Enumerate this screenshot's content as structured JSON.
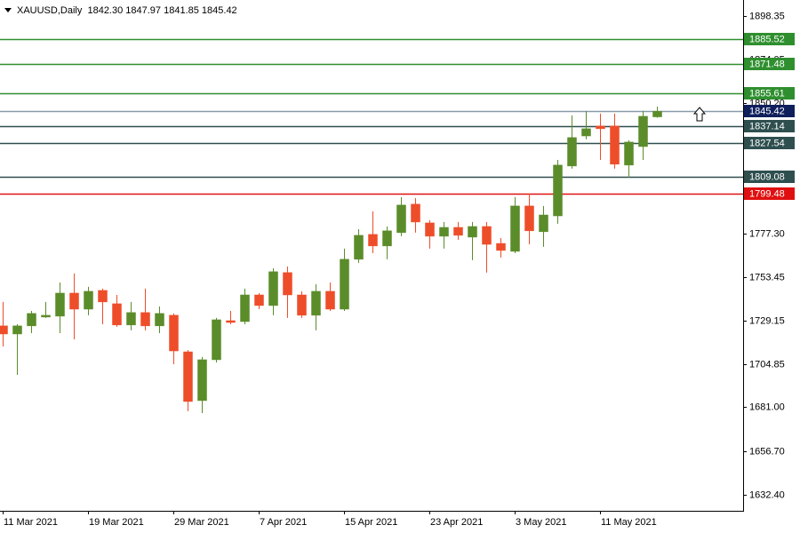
{
  "chart_data": {
    "type": "candlestick",
    "title": "XAUUSD,Daily  1842.30 1847.97 1841.85 1845.42",
    "categories": [
      "11 Mar 2021",
      null,
      null,
      null,
      null,
      null,
      "19 Mar 2021",
      null,
      null,
      null,
      null,
      null,
      "29 Mar 2021",
      null,
      null,
      null,
      null,
      null,
      "7 Apr 2021",
      null,
      null,
      null,
      null,
      null,
      "15 Apr 2021",
      null,
      null,
      null,
      null,
      null,
      "23 Apr 2021",
      null,
      null,
      null,
      null,
      null,
      "3 May 2021",
      null,
      null,
      null,
      null,
      null,
      "11 May 2021",
      null,
      null,
      null,
      null
    ],
    "open": [
      1726.2,
      1721.7,
      1726.2,
      1731.1,
      1731.6,
      1744.4,
      1735.5,
      1745.9,
      1738.5,
      1726.7,
      1733.6,
      1726.2,
      1732.1,
      1711.8,
      1684.7,
      1707.4,
      1729.1,
      1728.6,
      1743.4,
      1737.5,
      1755.8,
      1743.4,
      1732.1,
      1745.4,
      1735.5,
      1763.2,
      1777.0,
      1770.6,
      1778.0,
      1793.8,
      1783.4,
      1776.0,
      1780.9,
      1775.5,
      1781.4,
      1772.0,
      1767.6,
      1792.8,
      1778.5,
      1787.3,
      1815.0,
      1831.7,
      1837.2,
      1837.2,
      1815.5,
      1825.8,
      1842.3
    ],
    "high": [
      1739.5,
      1727.1,
      1734.5,
      1739.5,
      1750.3,
      1755.3,
      1747.9,
      1746.9,
      1743.4,
      1739.5,
      1746.9,
      1737.0,
      1733.1,
      1712.8,
      1708.9,
      1730.6,
      1734.5,
      1746.9,
      1744.4,
      1758.2,
      1759.2,
      1745.4,
      1749.3,
      1750.3,
      1769.1,
      1779.9,
      1789.8,
      1781.4,
      1797.7,
      1797.2,
      1784.9,
      1783.9,
      1783.9,
      1783.9,
      1783.9,
      1775.0,
      1797.7,
      1799.7,
      1792.8,
      1818.4,
      1843.1,
      1845.6,
      1844.1,
      1844.1,
      1829.3,
      1845.6,
      1847.97
    ],
    "low": [
      1714.8,
      1699.0,
      1722.2,
      1730.6,
      1722.2,
      1718.8,
      1732.1,
      1727.1,
      1725.7,
      1723.7,
      1723.7,
      1722.2,
      1704.9,
      1678.8,
      1677.8,
      1705.9,
      1727.1,
      1727.1,
      1735.5,
      1732.1,
      1730.6,
      1730.6,
      1723.7,
      1734.5,
      1734.5,
      1761.2,
      1766.6,
      1763.2,
      1776.0,
      1778.0,
      1769.1,
      1769.1,
      1774.0,
      1762.7,
      1755.8,
      1764.1,
      1766.6,
      1771.5,
      1770.1,
      1782.9,
      1813.5,
      1829.8,
      1818.4,
      1813.5,
      1808.5,
      1818.4,
      1841.85
    ],
    "close": [
      1721.7,
      1726.2,
      1733.1,
      1732.1,
      1744.4,
      1735.5,
      1745.4,
      1739.5,
      1726.7,
      1733.6,
      1726.2,
      1733.1,
      1712.3,
      1684.2,
      1707.4,
      1729.6,
      1728.1,
      1743.4,
      1737.5,
      1756.3,
      1743.4,
      1732.1,
      1745.4,
      1735.5,
      1763.2,
      1776.5,
      1770.6,
      1779.0,
      1793.3,
      1783.9,
      1776.0,
      1780.9,
      1776.5,
      1781.4,
      1771.5,
      1768.1,
      1792.8,
      1779.0,
      1787.8,
      1815.5,
      1830.8,
      1835.7,
      1835.7,
      1816.0,
      1828.3,
      1842.6,
      1845.42
    ],
    "up_color": "#5b8c2a",
    "down_color": "#ee4d2a",
    "ylim": [
      1623.5,
      1907.2
    ],
    "yticks": [
      1898.35,
      1874.05,
      {
        "value": 1850.2,
        "label": "1850.20"
      },
      {
        "value": 1777.3,
        "label": "1777.30"
      },
      1753.45,
      1729.15,
      1704.85,
      {
        "value": 1681,
        "label": "1681.00"
      },
      {
        "value": 1656.7,
        "label": "1656.70"
      },
      {
        "value": 1632.4,
        "label": "1632.40"
      }
    ],
    "levels": [
      {
        "value": 1885.52,
        "color": "#2f8f2f"
      },
      {
        "value": 1871.48,
        "color": "#2f8f2f"
      },
      {
        "value": 1855.61,
        "color": "#2f8f2f"
      },
      {
        "value": 1845.42,
        "color": "#8a9aaa",
        "label_color": "#0f1f5c"
      },
      {
        "value": 1837.14,
        "color": "#2f4f4f"
      },
      {
        "value": 1827.54,
        "color": "#2f4f4f"
      },
      {
        "value": 1809.08,
        "color": "#2f4f4f"
      },
      {
        "value": 1799.48,
        "color": "#e01010"
      }
    ]
  }
}
